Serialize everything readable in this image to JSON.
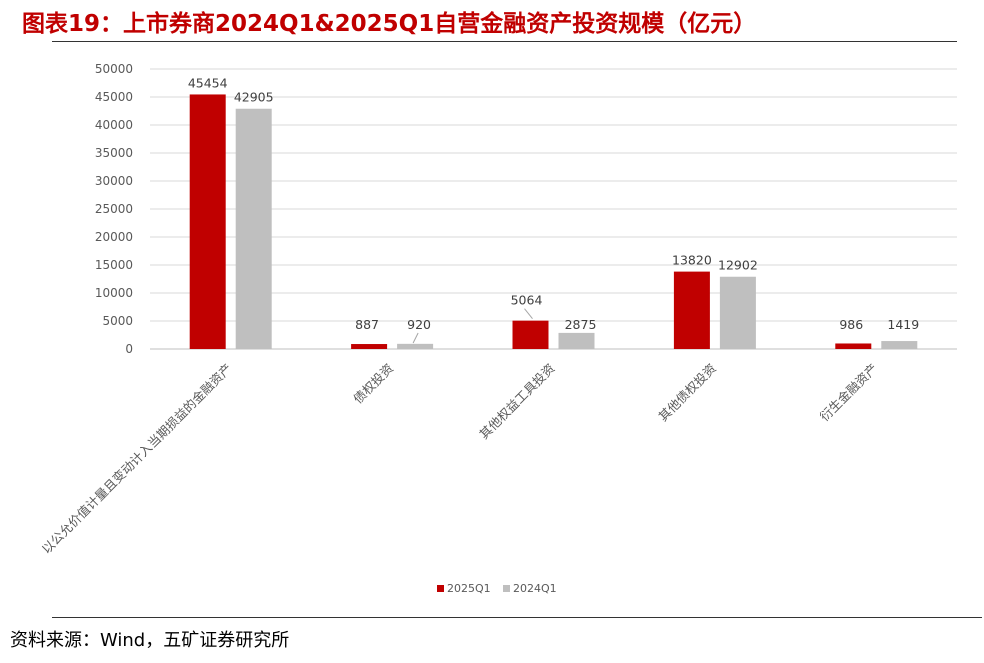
{
  "figure": {
    "title": "图表19：上市券商2024Q1&2025Q1自营金融资产投资规模（亿元）",
    "source": "资料来源：Wind，五矿证券研究所"
  },
  "colors": {
    "title": "#c00000",
    "series_2025Q1": "#c00000",
    "series_2024Q1": "#bfbfbf",
    "grid": "#d9d9d9"
  },
  "chart_data": {
    "type": "bar",
    "categories": [
      "以公允价值计量且变动计入当期损益的金融资产",
      "债权投资",
      "其他权益工具投资",
      "其他债权投资",
      "衍生金融资产"
    ],
    "series": [
      {
        "name": "2025Q1",
        "values": [
          45454,
          887,
          5064,
          13820,
          986
        ]
      },
      {
        "name": "2024Q1",
        "values": [
          42905,
          920,
          2875,
          12902,
          1419
        ]
      }
    ],
    "ylim": [
      0,
      50000
    ],
    "yticks": [
      0,
      5000,
      10000,
      15000,
      20000,
      25000,
      30000,
      35000,
      40000,
      45000,
      50000
    ],
    "xlabel": "",
    "ylabel": "",
    "grid": true,
    "legend": "bottom-center",
    "data_labels": true
  }
}
